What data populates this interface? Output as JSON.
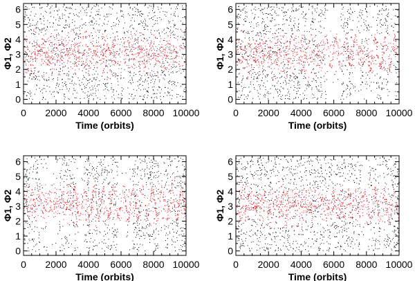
{
  "chart_data": [
    {
      "type": "scatter",
      "panel": "top-left",
      "xlabel": "Time (orbits)",
      "ylabel": "Φ1, Φ2",
      "xlim": [
        0,
        10000
      ],
      "ylim": [
        -0.3,
        6.4
      ],
      "xticks": [
        0,
        2000,
        4000,
        6000,
        8000,
        10000
      ],
      "yticks": [
        0,
        1,
        2,
        3,
        4,
        5,
        6
      ],
      "series": [
        {
          "color": "#000000",
          "pattern": "uniform",
          "gaps": [
            [
              4700,
              4850
            ],
            [
              6200,
              6400
            ],
            [
              9500,
              9650
            ]
          ]
        },
        {
          "color": "#e8101a",
          "pattern": "cloud",
          "center": 3.1,
          "spread": 1.25
        }
      ]
    },
    {
      "type": "scatter",
      "panel": "top-right",
      "xlabel": "Time (orbits)",
      "ylabel": "Φ1, Φ2",
      "xlim": [
        0,
        10000
      ],
      "ylim": [
        -0.3,
        6.4
      ],
      "xticks": [
        0,
        2000,
        4000,
        6000,
        8000,
        10000
      ],
      "yticks": [
        0,
        1,
        2,
        3,
        4,
        5,
        6
      ],
      "series": [
        {
          "color": "#000000",
          "pattern": "uniform",
          "gaps": [
            [
              5500,
              6400
            ],
            [
              7200,
              7500
            ],
            [
              8200,
              8600
            ],
            [
              9400,
              9700
            ]
          ]
        },
        {
          "color": "#e8101a",
          "pattern": "cloud-then-oscillation",
          "center": 3.1,
          "spread": 1.25,
          "oscillation_from": 5500
        }
      ]
    },
    {
      "type": "scatter",
      "panel": "bottom-left",
      "xlabel": "Time (orbits)",
      "ylabel": "Φ1, Φ2",
      "xlim": [
        0,
        10000
      ],
      "ylim": [
        -0.3,
        6.4
      ],
      "xticks": [
        0,
        2000,
        4000,
        6000,
        8000,
        10000
      ],
      "yticks": [
        0,
        1,
        2,
        3,
        4,
        5,
        6
      ],
      "series": [
        {
          "color": "#000000",
          "pattern": "uniform",
          "gaps": [
            [
              1000,
              2200
            ],
            [
              3300,
              3700
            ],
            [
              5800,
              6700
            ],
            [
              8300,
              8600
            ]
          ]
        },
        {
          "color": "#e8101a",
          "pattern": "cloud-then-oscillation",
          "center": 3.2,
          "spread": 1.2,
          "oscillation_from": 3000
        }
      ]
    },
    {
      "type": "scatter",
      "panel": "bottom-right",
      "xlabel": "Time (orbits)",
      "ylabel": "Φ1, Φ2",
      "xlim": [
        0,
        10000
      ],
      "ylim": [
        -0.3,
        6.4
      ],
      "xticks": [
        0,
        2000,
        4000,
        6000,
        8000,
        10000
      ],
      "yticks": [
        0,
        1,
        2,
        3,
        4,
        5,
        6
      ],
      "series": [
        {
          "color": "#000000",
          "pattern": "uniform",
          "gaps": [
            [
              7700,
              8100
            ],
            [
              8800,
              9000
            ]
          ]
        },
        {
          "color": "#e8101a",
          "pattern": "cloud-then-oscillation",
          "center": 3.1,
          "spread": 1.25,
          "oscillation_from": 7800
        }
      ]
    }
  ]
}
